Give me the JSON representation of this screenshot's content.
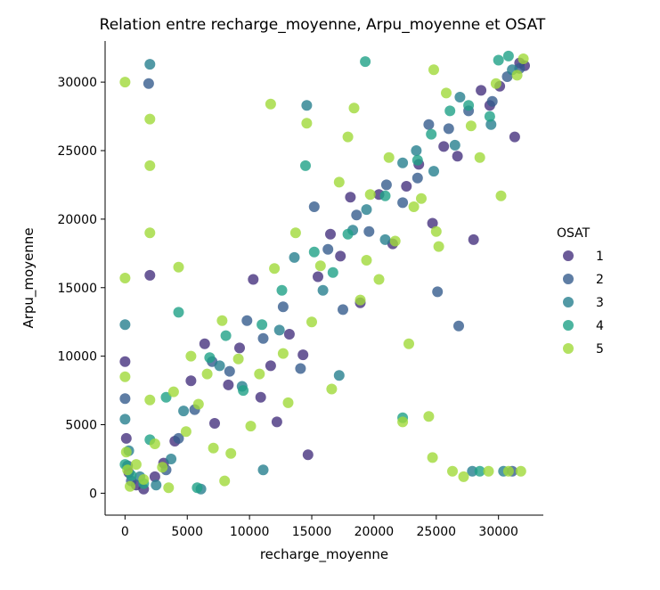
{
  "chart_data": {
    "type": "scatter",
    "title": "Relation entre recharge_moyenne, Arpu_moyenne et OSAT",
    "xlabel": "recharge_moyenne",
    "ylabel": "Arpu_moyenne",
    "xlim": [
      -1600,
      33600
    ],
    "ylim": [
      -1600,
      33000
    ],
    "xticks": [
      0,
      5000,
      10000,
      15000,
      20000,
      25000,
      30000
    ],
    "yticks": [
      0,
      5000,
      10000,
      15000,
      20000,
      25000,
      30000
    ],
    "grid": false,
    "legend": {
      "title": "OSAT",
      "position": "right",
      "entries": [
        "1",
        "2",
        "3",
        "4",
        "5"
      ]
    },
    "colors": {
      "1": "#46327e",
      "2": "#365c8d",
      "3": "#277f8e",
      "4": "#1fa187",
      "5": "#a0da39"
    },
    "series": [
      {
        "name": "1",
        "points": [
          [
            0,
            9600
          ],
          [
            100,
            4000
          ],
          [
            300,
            1500
          ],
          [
            900,
            600
          ],
          [
            1500,
            300
          ],
          [
            2000,
            15900
          ],
          [
            2400,
            1200
          ],
          [
            3100,
            2200
          ],
          [
            4000,
            3800
          ],
          [
            5300,
            8200
          ],
          [
            6400,
            10900
          ],
          [
            7200,
            5100
          ],
          [
            8300,
            7900
          ],
          [
            9200,
            10600
          ],
          [
            10300,
            15600
          ],
          [
            10900,
            7000
          ],
          [
            11700,
            9300
          ],
          [
            12200,
            5200
          ],
          [
            13200,
            11600
          ],
          [
            14300,
            10100
          ],
          [
            14700,
            2800
          ],
          [
            15500,
            15800
          ],
          [
            16500,
            18900
          ],
          [
            17300,
            17300
          ],
          [
            18100,
            21600
          ],
          [
            18900,
            13900
          ],
          [
            20400,
            21800
          ],
          [
            21500,
            18200
          ],
          [
            22600,
            22400
          ],
          [
            23600,
            24000
          ],
          [
            24700,
            19700
          ],
          [
            25600,
            25300
          ],
          [
            26700,
            24600
          ],
          [
            28000,
            18500
          ],
          [
            28600,
            29400
          ],
          [
            29300,
            28300
          ],
          [
            30100,
            29700
          ],
          [
            31300,
            26000
          ],
          [
            31700,
            31400
          ],
          [
            32100,
            31200
          ]
        ]
      },
      {
        "name": "2",
        "points": [
          [
            0,
            6900
          ],
          [
            200,
            2000
          ],
          [
            500,
            900
          ],
          [
            1900,
            29900
          ],
          [
            3300,
            1700
          ],
          [
            4300,
            4000
          ],
          [
            5600,
            6100
          ],
          [
            7000,
            9600
          ],
          [
            8400,
            8900
          ],
          [
            9800,
            12600
          ],
          [
            11100,
            11300
          ],
          [
            12700,
            13600
          ],
          [
            14100,
            9100
          ],
          [
            15200,
            20900
          ],
          [
            16300,
            17800
          ],
          [
            17500,
            13400
          ],
          [
            18600,
            20300
          ],
          [
            19600,
            19100
          ],
          [
            21000,
            22500
          ],
          [
            22300,
            21200
          ],
          [
            23500,
            23000
          ],
          [
            24400,
            26900
          ],
          [
            25100,
            14700
          ],
          [
            26000,
            26600
          ],
          [
            26800,
            12200
          ],
          [
            27600,
            27900
          ],
          [
            29500,
            28600
          ],
          [
            30700,
            30400
          ],
          [
            31100,
            1600
          ],
          [
            31700,
            31000
          ]
        ]
      },
      {
        "name": "3",
        "points": [
          [
            0,
            12300
          ],
          [
            0,
            5400
          ],
          [
            300,
            3100
          ],
          [
            1200,
            1200
          ],
          [
            2000,
            31300
          ],
          [
            2500,
            600
          ],
          [
            3700,
            2500
          ],
          [
            4700,
            6000
          ],
          [
            6100,
            300
          ],
          [
            7600,
            9300
          ],
          [
            9400,
            7800
          ],
          [
            11100,
            1700
          ],
          [
            12400,
            11900
          ],
          [
            13600,
            17200
          ],
          [
            14600,
            28300
          ],
          [
            15900,
            14800
          ],
          [
            17200,
            8600
          ],
          [
            18300,
            19200
          ],
          [
            19400,
            20700
          ],
          [
            20900,
            18500
          ],
          [
            22300,
            24100
          ],
          [
            23400,
            25000
          ],
          [
            24800,
            23500
          ],
          [
            26500,
            25400
          ],
          [
            26900,
            28900
          ],
          [
            27900,
            1600
          ],
          [
            29400,
            26900
          ],
          [
            30400,
            1600
          ],
          [
            31100,
            30900
          ]
        ]
      },
      {
        "name": "4",
        "points": [
          [
            0,
            2100
          ],
          [
            500,
            1300
          ],
          [
            1500,
            700
          ],
          [
            2000,
            3900
          ],
          [
            3300,
            7000
          ],
          [
            4300,
            13200
          ],
          [
            5800,
            400
          ],
          [
            6800,
            9900
          ],
          [
            8100,
            11500
          ],
          [
            9500,
            7500
          ],
          [
            11000,
            12300
          ],
          [
            12600,
            14800
          ],
          [
            14500,
            23900
          ],
          [
            15200,
            17600
          ],
          [
            16700,
            16100
          ],
          [
            17900,
            18900
          ],
          [
            19300,
            31500
          ],
          [
            20900,
            21700
          ],
          [
            22300,
            5500
          ],
          [
            23500,
            24300
          ],
          [
            24600,
            26200
          ],
          [
            26100,
            27900
          ],
          [
            27600,
            28300
          ],
          [
            28500,
            1600
          ],
          [
            29300,
            27500
          ],
          [
            30000,
            31600
          ],
          [
            30800,
            31900
          ]
        ]
      },
      {
        "name": "5",
        "points": [
          [
            0,
            30000
          ],
          [
            0,
            15700
          ],
          [
            0,
            8500
          ],
          [
            100,
            3000
          ],
          [
            200,
            1700
          ],
          [
            400,
            500
          ],
          [
            900,
            2100
          ],
          [
            1500,
            1000
          ],
          [
            2000,
            27300
          ],
          [
            2000,
            23900
          ],
          [
            2000,
            19000
          ],
          [
            2000,
            6800
          ],
          [
            2400,
            3600
          ],
          [
            3000,
            1900
          ],
          [
            3500,
            400
          ],
          [
            3900,
            7400
          ],
          [
            4300,
            16500
          ],
          [
            4900,
            4500
          ],
          [
            5300,
            10000
          ],
          [
            5900,
            6500
          ],
          [
            6600,
            8700
          ],
          [
            7100,
            3300
          ],
          [
            7800,
            12600
          ],
          [
            8000,
            900
          ],
          [
            8500,
            2900
          ],
          [
            9100,
            9800
          ],
          [
            10100,
            4900
          ],
          [
            10800,
            8700
          ],
          [
            11700,
            28400
          ],
          [
            12000,
            16400
          ],
          [
            12700,
            10200
          ],
          [
            13100,
            6600
          ],
          [
            13700,
            19000
          ],
          [
            14600,
            27000
          ],
          [
            15000,
            12500
          ],
          [
            15700,
            16600
          ],
          [
            16600,
            7600
          ],
          [
            17200,
            22700
          ],
          [
            17900,
            26000
          ],
          [
            18400,
            28100
          ],
          [
            18900,
            14100
          ],
          [
            19400,
            17000
          ],
          [
            19700,
            21800
          ],
          [
            20400,
            15600
          ],
          [
            21200,
            24500
          ],
          [
            21700,
            18400
          ],
          [
            22300,
            5200
          ],
          [
            22800,
            10900
          ],
          [
            23200,
            20900
          ],
          [
            23800,
            21500
          ],
          [
            24400,
            5600
          ],
          [
            24700,
            2600
          ],
          [
            24800,
            30900
          ],
          [
            25000,
            19100
          ],
          [
            25200,
            18000
          ],
          [
            25800,
            29200
          ],
          [
            26300,
            1600
          ],
          [
            27200,
            1200
          ],
          [
            27800,
            26800
          ],
          [
            28500,
            24500
          ],
          [
            29200,
            1600
          ],
          [
            29800,
            29900
          ],
          [
            30200,
            21700
          ],
          [
            30800,
            1600
          ],
          [
            31500,
            30500
          ],
          [
            31800,
            1600
          ],
          [
            32000,
            31700
          ]
        ]
      }
    ]
  }
}
